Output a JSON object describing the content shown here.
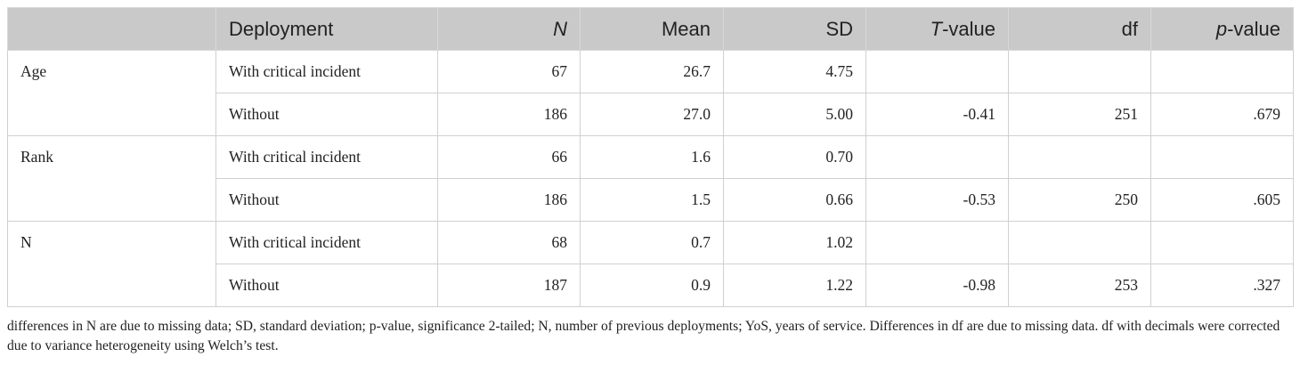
{
  "table": {
    "header": [
      [
        {
          "text": "Deployment"
        }
      ],
      [
        {
          "text": "N",
          "italic": true
        }
      ],
      [
        {
          "text": "Mean"
        }
      ],
      [
        {
          "text": "SD"
        }
      ],
      [
        {
          "text": "T",
          "italic": true
        },
        {
          "text": "-value"
        }
      ],
      [
        {
          "text": "df"
        }
      ],
      [
        {
          "text": "p",
          "italic": true
        },
        {
          "text": "-value"
        }
      ]
    ],
    "groups": [
      {
        "label": "Age",
        "rows": [
          [
            "With critical incident",
            "67",
            "26.7",
            "4.75",
            null,
            null,
            null
          ],
          [
            "Without",
            "186",
            "27.0",
            "5.00",
            "-0.41",
            "251",
            ".679"
          ]
        ]
      },
      {
        "label": "Rank",
        "rows": [
          [
            "With critical incident",
            "66",
            "1.6",
            "0.70",
            null,
            null,
            null
          ],
          [
            "Without",
            "186",
            "1.5",
            "0.66",
            "-0.53",
            "250",
            ".605"
          ]
        ]
      },
      {
        "label": "N",
        "rows": [
          [
            "With critical incident",
            "68",
            "0.7",
            "1.02",
            null,
            null,
            null
          ],
          [
            "Without",
            "187",
            "0.9",
            "1.22",
            "-0.98",
            "253",
            ".327"
          ]
        ]
      }
    ]
  },
  "footnote": "differences in N are due to missing data; SD, standard deviation; p-value, significance 2-tailed; N, number of previous deployments; YoS, years of service. Differences in df are due to missing data. df with decimals were corrected due to variance heterogeneity using Welch’s test."
}
